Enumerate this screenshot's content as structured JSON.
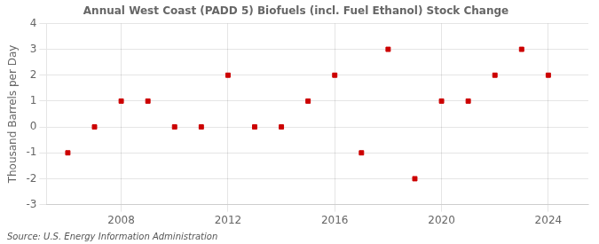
{
  "chart_data": {
    "type": "scatter",
    "title": "Annual West Coast (PADD 5) Biofuels (incl. Fuel Ethanol) Stock Change",
    "ylabel": "Thousand Barrels per Day",
    "annotation": "Source: U.S. Energy Information Administration",
    "x": [
      2006,
      2007,
      2008,
      2009,
      2010,
      2011,
      2012,
      2013,
      2014,
      2015,
      2016,
      2017,
      2018,
      2019,
      2020,
      2021,
      2022,
      2023,
      2024
    ],
    "values": [
      -1,
      0,
      1,
      1,
      0,
      0,
      2,
      0,
      0,
      1,
      2,
      -1,
      3,
      -2,
      1,
      1,
      2,
      3,
      2
    ],
    "color": "#cc0000",
    "marker": "square",
    "xlim": [
      2005.2,
      2025.5
    ],
    "ylim": [
      -3,
      4
    ],
    "xticks": [
      2008,
      2012,
      2016,
      2020,
      2024
    ],
    "yticks": [
      -3,
      -2,
      -1,
      0,
      1,
      2,
      3,
      4
    ],
    "grid": true
  }
}
